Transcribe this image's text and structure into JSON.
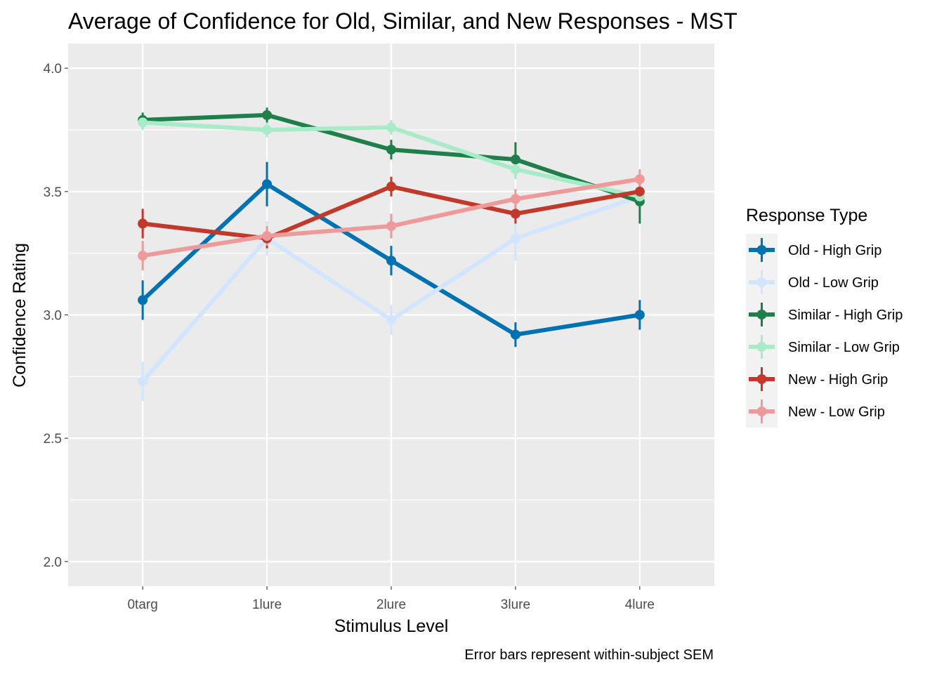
{
  "chart_data": {
    "type": "line",
    "title": "Average of Confidence for Old, Similar, and New Responses - MST",
    "xlabel": "Stimulus Level",
    "ylabel": "Confidence Rating",
    "caption": "Error bars represent within-subject SEM",
    "categories": [
      "0targ",
      "1lure",
      "2lure",
      "3lure",
      "4lure"
    ],
    "ylim": [
      1.9,
      4.1
    ],
    "yticks": [
      2.0,
      2.5,
      3.0,
      3.5,
      4.0
    ],
    "ytick_labels": [
      "2.0",
      "2.5",
      "3.0",
      "3.5",
      "4.0"
    ],
    "grid": true,
    "legend_title": "Response Type",
    "legend_position": "right",
    "series": [
      {
        "name": "Old - High Grip",
        "color": "#0072B2",
        "values": [
          3.06,
          3.53,
          3.22,
          2.92,
          3.0
        ],
        "sem": [
          0.08,
          0.09,
          0.06,
          0.05,
          0.06
        ]
      },
      {
        "name": "Old - Low Grip",
        "color": "#D1E5FF",
        "values": [
          2.73,
          3.31,
          2.98,
          3.31,
          3.48
        ],
        "sem": [
          0.08,
          0.07,
          0.06,
          0.09,
          0.05
        ]
      },
      {
        "name": "Similar - High Grip",
        "color": "#1F7F4A",
        "values": [
          3.79,
          3.81,
          3.67,
          3.63,
          3.46
        ],
        "sem": [
          0.03,
          0.03,
          0.04,
          0.07,
          0.09
        ]
      },
      {
        "name": "Similar - Low Grip",
        "color": "#A8EBC8",
        "values": [
          3.78,
          3.75,
          3.76,
          3.59,
          3.48
        ],
        "sem": [
          0.03,
          0.03,
          0.03,
          0.04,
          0.04
        ]
      },
      {
        "name": "New - High Grip",
        "color": "#C0392B",
        "values": [
          3.37,
          3.31,
          3.52,
          3.41,
          3.5
        ],
        "sem": [
          0.06,
          0.04,
          0.04,
          0.04,
          0.04
        ]
      },
      {
        "name": "New - Low Grip",
        "color": "#EE9A9A",
        "values": [
          3.24,
          3.32,
          3.36,
          3.47,
          3.55
        ],
        "sem": [
          0.06,
          0.04,
          0.05,
          0.04,
          0.04
        ]
      }
    ]
  }
}
